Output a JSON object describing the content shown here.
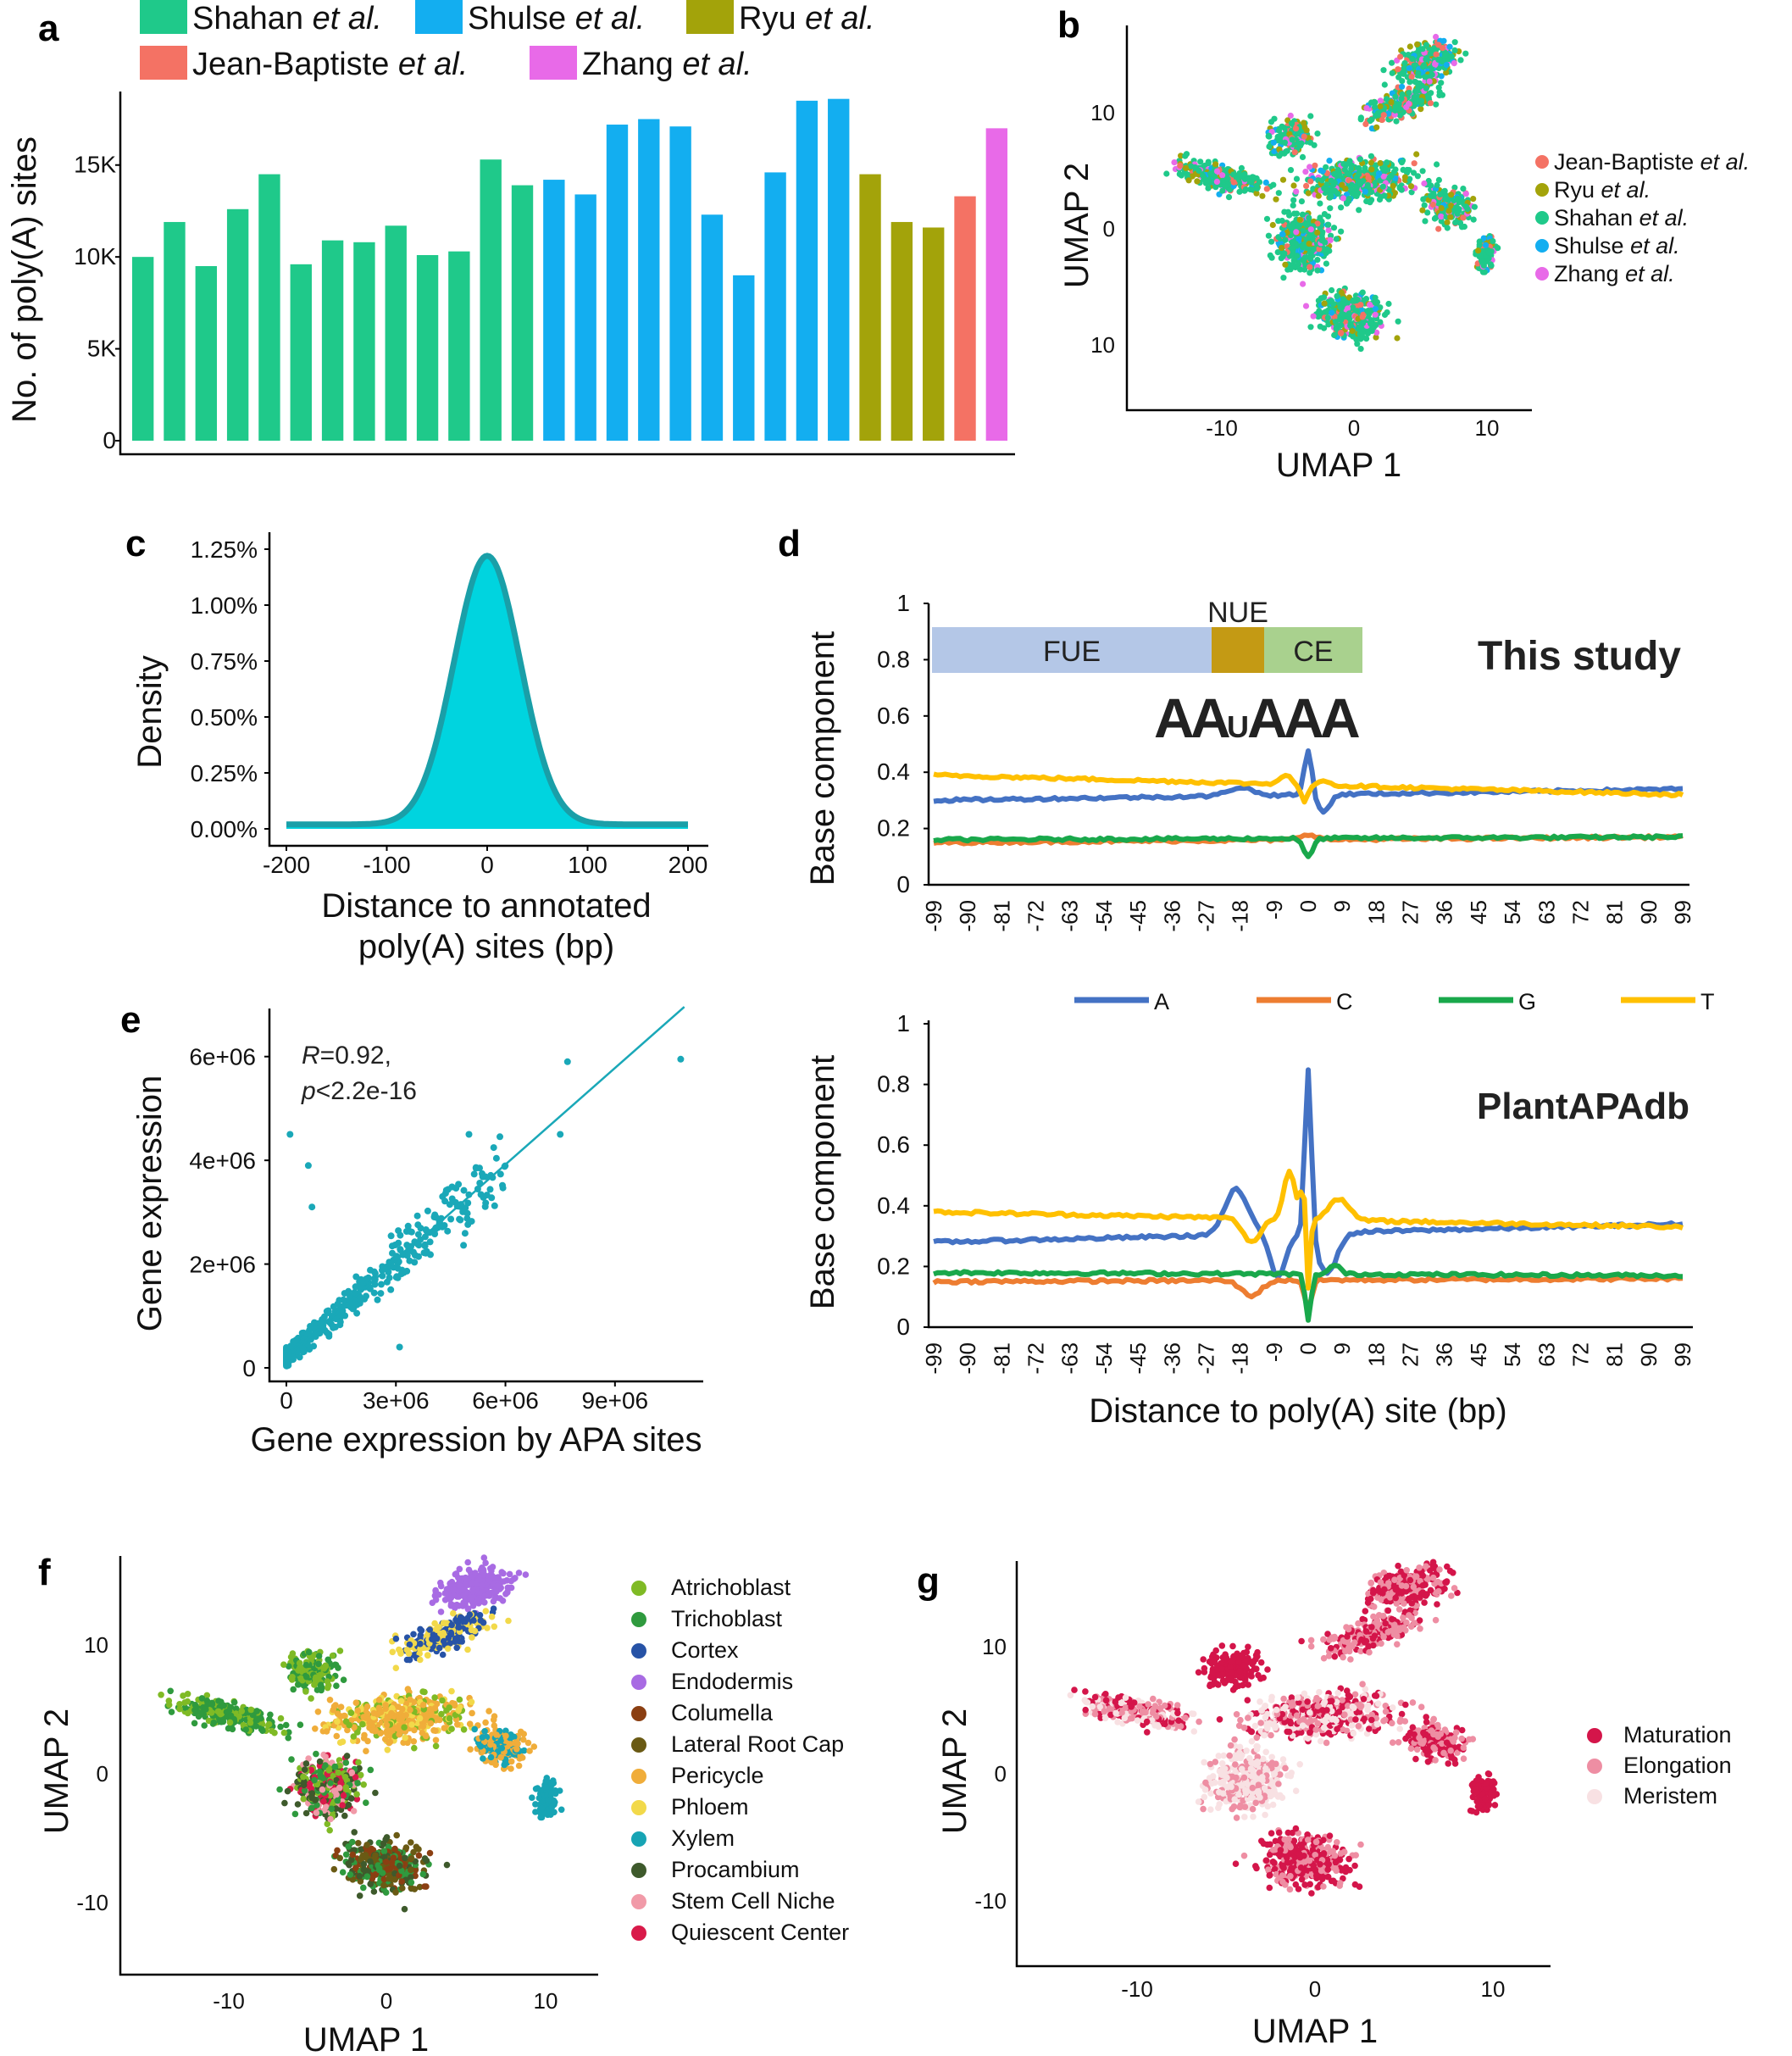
{
  "panels": {
    "a": "a",
    "b": "b",
    "c": "c",
    "d": "d",
    "e": "e",
    "f": "f",
    "g": "g"
  },
  "colors": {
    "shahan": "#1fc98a",
    "shulse": "#13aef0",
    "ryu": "#a3a30a",
    "jean": "#f47264",
    "zhang": "#e86ae8",
    "A": "#4472c4",
    "C": "#ed7d31",
    "G": "#19a84b",
    "T": "#ffc000",
    "density_fill": "#00d4df",
    "density_line": "#1a9fa8",
    "scatter": "#1aa8b8"
  },
  "chart_data": [
    {
      "id": "a",
      "type": "bar",
      "ylabel": "No. of poly(A) sites",
      "yticks": [
        "0",
        "5K",
        "10K",
        "15K"
      ],
      "ylim": [
        0,
        19000
      ],
      "legend": [
        {
          "prefix": "Shahan",
          "suffix": "et al.",
          "key": "shahan"
        },
        {
          "prefix": "Shulse",
          "suffix": "et al.",
          "key": "shulse"
        },
        {
          "prefix": "Ryu",
          "suffix": "et al.",
          "key": "ryu"
        },
        {
          "prefix": "Jean-Baptiste",
          "suffix": "et al.",
          "key": "jean"
        },
        {
          "prefix": "Zhang",
          "suffix": "et al.",
          "key": "zhang"
        }
      ],
      "bars": [
        {
          "value": 10000,
          "group": "shahan"
        },
        {
          "value": 11900,
          "group": "shahan"
        },
        {
          "value": 9500,
          "group": "shahan"
        },
        {
          "value": 12600,
          "group": "shahan"
        },
        {
          "value": 14500,
          "group": "shahan"
        },
        {
          "value": 9600,
          "group": "shahan"
        },
        {
          "value": 10900,
          "group": "shahan"
        },
        {
          "value": 10800,
          "group": "shahan"
        },
        {
          "value": 11700,
          "group": "shahan"
        },
        {
          "value": 10100,
          "group": "shahan"
        },
        {
          "value": 10300,
          "group": "shahan"
        },
        {
          "value": 15300,
          "group": "shahan"
        },
        {
          "value": 13900,
          "group": "shahan"
        },
        {
          "value": 14200,
          "group": "shulse"
        },
        {
          "value": 13400,
          "group": "shulse"
        },
        {
          "value": 17200,
          "group": "shulse"
        },
        {
          "value": 17500,
          "group": "shulse"
        },
        {
          "value": 17100,
          "group": "shulse"
        },
        {
          "value": 12300,
          "group": "shulse"
        },
        {
          "value": 9000,
          "group": "shulse"
        },
        {
          "value": 14600,
          "group": "shulse"
        },
        {
          "value": 18500,
          "group": "shulse"
        },
        {
          "value": 18600,
          "group": "shulse"
        },
        {
          "value": 14500,
          "group": "ryu"
        },
        {
          "value": 11900,
          "group": "ryu"
        },
        {
          "value": 11600,
          "group": "ryu"
        },
        {
          "value": 13300,
          "group": "jean"
        },
        {
          "value": 17000,
          "group": "zhang"
        }
      ]
    },
    {
      "id": "b",
      "type": "scatter",
      "xlabel": "UMAP 1",
      "ylabel": "UMAP 2",
      "xticks": [
        "-10",
        "0",
        "10"
      ],
      "yticks": [
        "10",
        "0",
        "10"
      ],
      "legend": [
        {
          "prefix": "Jean-Baptiste",
          "suffix": "et al.",
          "key": "jean"
        },
        {
          "prefix": "Ryu",
          "suffix": "et al.",
          "key": "ryu"
        },
        {
          "prefix": "Shahan",
          "suffix": "et al.",
          "key": "shahan"
        },
        {
          "prefix": "Shulse",
          "suffix": "et al.",
          "key": "shulse"
        },
        {
          "prefix": "Zhang",
          "suffix": "et al.",
          "key": "zhang"
        }
      ]
    },
    {
      "id": "c",
      "type": "area",
      "xlabel_line1": "Distance to annotated",
      "xlabel_line2": "poly(A) sites (bp)",
      "ylabel": "Density",
      "xticks": [
        "-200",
        "-100",
        "0",
        "100",
        "200"
      ],
      "yticks": [
        "0.00%",
        "0.25%",
        "0.50%",
        "0.75%",
        "1.00%",
        "1.25%"
      ],
      "xlim": [
        -200,
        200
      ],
      "ylim": [
        0,
        1.25
      ],
      "peak": 1.2,
      "center": 0,
      "sd": 33
    },
    {
      "id": "d_top",
      "type": "line",
      "title": "This study",
      "ylabel": "Base component",
      "yticks": [
        "0",
        "0.2",
        "0.4",
        "0.6",
        "0.8",
        "1"
      ],
      "xticks": [
        "-99",
        "-90",
        "-81",
        "-72",
        "-63",
        "-54",
        "-45",
        "-36",
        "-27",
        "-18",
        "-9",
        "0",
        "9",
        "18",
        "27",
        "36",
        "45",
        "54",
        "63",
        "72",
        "81",
        "90",
        "99"
      ],
      "regions": [
        {
          "label": "FUE"
        },
        {
          "label": "NUE"
        },
        {
          "label": "CE"
        }
      ],
      "motif": [
        "A",
        "A",
        "U",
        "A",
        "A",
        "A"
      ],
      "series": [
        {
          "name": "A",
          "start": 0.3,
          "end": 0.34,
          "zero": 0.48
        },
        {
          "name": "C",
          "start": 0.15,
          "end": 0.17,
          "zero": 0.18
        },
        {
          "name": "G",
          "start": 0.16,
          "end": 0.17,
          "zero": 0.1
        },
        {
          "name": "T",
          "start": 0.39,
          "end": 0.32,
          "zero": 0.4
        }
      ]
    },
    {
      "id": "d_bottom",
      "type": "line",
      "title": "PlantAPAdb",
      "ylabel": "Base component",
      "xlabel": "Distance to poly(A) site (bp)",
      "yticks": [
        "0",
        "0.2",
        "0.4",
        "0.6",
        "0.8",
        "1"
      ],
      "xticks": [
        "-99",
        "-90",
        "-81",
        "-72",
        "-63",
        "-54",
        "-45",
        "-36",
        "-27",
        "-18",
        "-9",
        "0",
        "9",
        "18",
        "27",
        "36",
        "45",
        "54",
        "63",
        "72",
        "81",
        "90",
        "99"
      ],
      "legend": [
        "A",
        "C",
        "G",
        "T"
      ],
      "series": [
        {
          "name": "A",
          "start": 0.28,
          "end": 0.34,
          "peak": 0.87
        },
        {
          "name": "C",
          "start": 0.15,
          "end": 0.16,
          "peak": 0.04
        },
        {
          "name": "G",
          "start": 0.18,
          "end": 0.17,
          "peak": 0.03
        },
        {
          "name": "T",
          "start": 0.38,
          "end": 0.33,
          "peak": 0.56
        }
      ]
    },
    {
      "id": "e",
      "type": "scatter",
      "annotation_r": "R",
      "annotation_r_val": "=0.92,",
      "annotation_p": "p",
      "annotation_p_val": "<2.2e-16",
      "xlabel": "Gene expression by APA sites",
      "ylabel": "Gene expression",
      "xticks": [
        "0",
        "3e+06",
        "6e+06",
        "9e+06"
      ],
      "yticks": [
        "0",
        "2e+06",
        "4e+06",
        "6e+06"
      ],
      "fit_slope": 0.62,
      "fit_intercept": 200000
    },
    {
      "id": "f",
      "type": "scatter",
      "xlabel": "UMAP 1",
      "ylabel": "UMAP 2",
      "xticks": [
        "-10",
        "0",
        "10"
      ],
      "yticks": [
        "10",
        "0",
        "-10"
      ],
      "legend": [
        {
          "label": "Atrichoblast",
          "color": "#7fba25"
        },
        {
          "label": "Trichoblast",
          "color": "#2f9a3e"
        },
        {
          "label": "Cortex",
          "color": "#2753a6"
        },
        {
          "label": "Endodermis",
          "color": "#a86be3"
        },
        {
          "label": "Columella",
          "color": "#8b3f12"
        },
        {
          "label": "Lateral Root Cap",
          "color": "#6a5a14"
        },
        {
          "label": "Pericycle",
          "color": "#f0ad3a"
        },
        {
          "label": "Phloem",
          "color": "#f2d94a"
        },
        {
          "label": "Xylem",
          "color": "#17a4b4"
        },
        {
          "label": "Procambium",
          "color": "#3e5a2c"
        },
        {
          "label": "Stem Cell Niche",
          "color": "#f19aa8"
        },
        {
          "label": "Quiescent Center",
          "color": "#d91a4a"
        }
      ]
    },
    {
      "id": "g",
      "type": "scatter",
      "xlabel": "UMAP 1",
      "ylabel": "UMAP 2",
      "xticks": [
        "-10",
        "0",
        "10"
      ],
      "yticks": [
        "10",
        "0",
        "-10"
      ],
      "legend": [
        {
          "label": "Maturation",
          "color": "#d4154a"
        },
        {
          "label": "Elongation",
          "color": "#ee8ea3"
        },
        {
          "label": "Meristem",
          "color": "#f8e1e3"
        }
      ]
    }
  ]
}
